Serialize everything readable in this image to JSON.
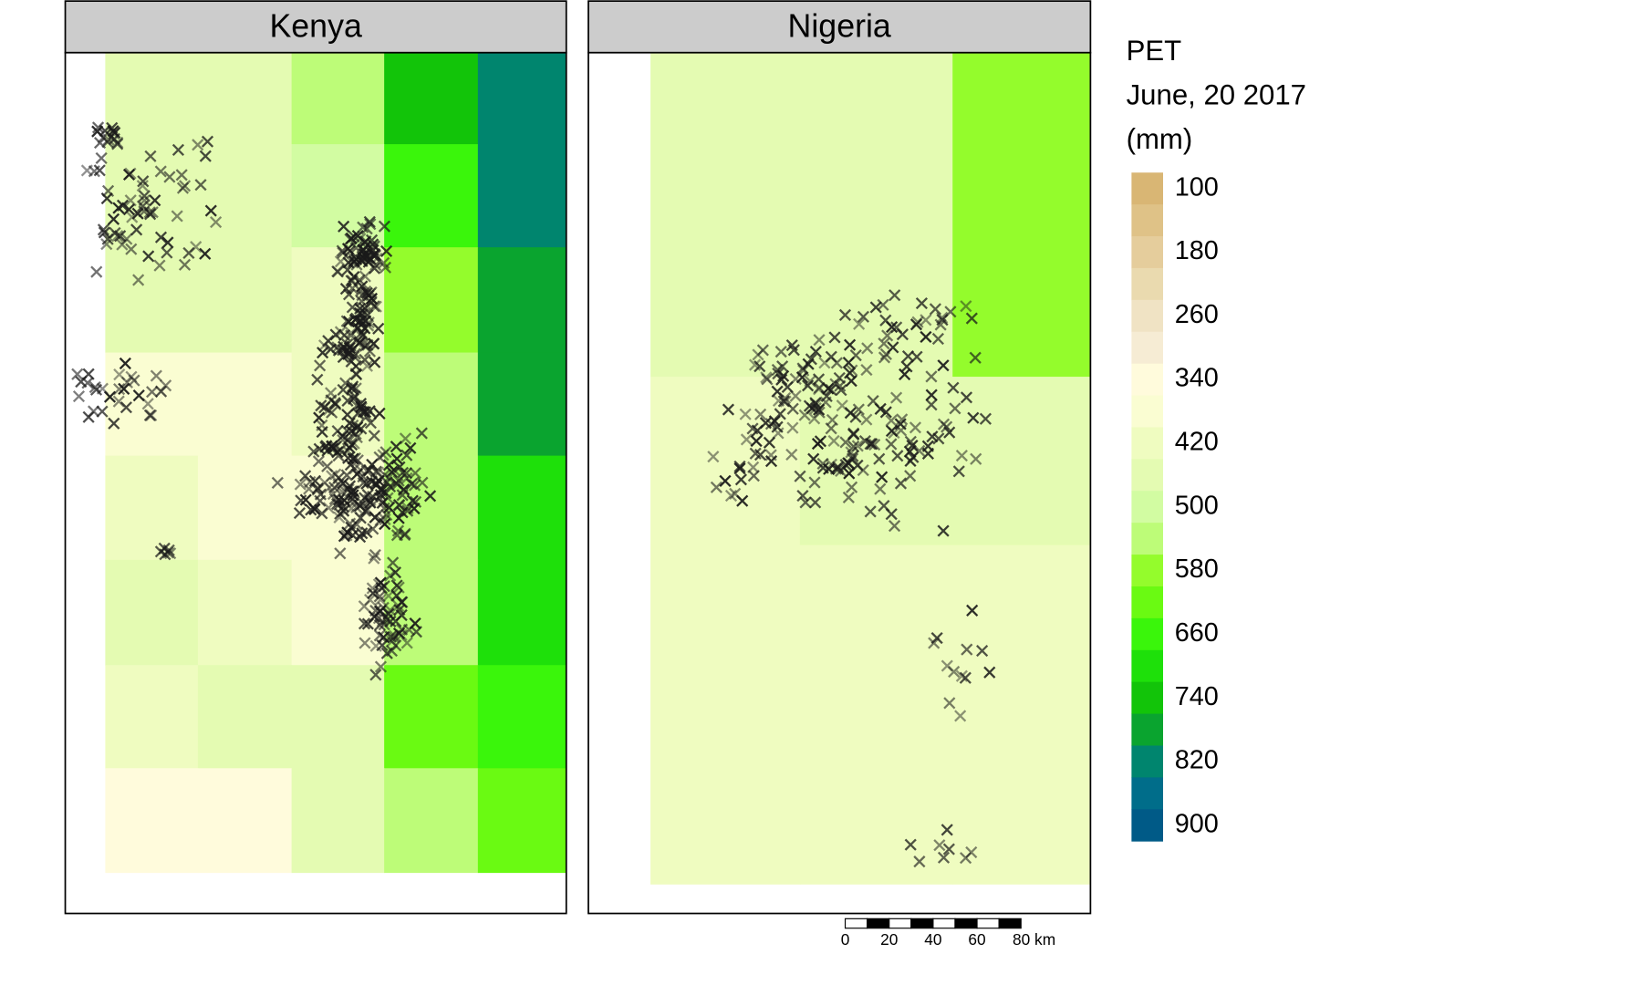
{
  "panels": [
    {
      "title": "Kenya",
      "cells": [
        [
          460,
          460,
          540,
          740,
          820
        ],
        [
          460,
          460,
          500,
          660,
          820
        ],
        [
          460,
          460,
          420,
          580,
          780
        ],
        [
          380,
          380,
          420,
          540,
          780
        ],
        [
          420,
          380,
          380,
          540,
          700
        ],
        [
          460,
          420,
          380,
          540,
          700
        ],
        [
          420,
          460,
          460,
          620,
          660
        ],
        [
          340,
          340,
          460,
          540,
          620
        ]
      ]
    },
    {
      "title": "Nigeria",
      "cells": [
        [
          460,
          460,
          580
        ],
        [
          420,
          460,
          460
        ],
        [
          420,
          420,
          420
        ]
      ]
    }
  ],
  "legend": {
    "title": "PET",
    "subtitle": "June, 20 2017",
    "unit": "(mm)",
    "breaks": [
      100,
      140,
      180,
      220,
      260,
      300,
      340,
      380,
      420,
      460,
      500,
      540,
      580,
      620,
      660,
      700,
      740,
      780,
      820,
      860,
      900
    ],
    "colors": [
      "#d9b674",
      "#dfc287",
      "#e5cd9c",
      "#eadaaf",
      "#f0e3c4",
      "#f6ecd4",
      "#fffbdc",
      "#fafdd2",
      "#effcc0",
      "#e4fbb2",
      "#d2fca2",
      "#bdfc78",
      "#94fc2c",
      "#6afa12",
      "#3af60b",
      "#1ee00a",
      "#12c409",
      "#0aa42f",
      "#00856e",
      "#006d8a",
      "#005a87"
    ],
    "ticks": [
      100,
      180,
      260,
      340,
      420,
      500,
      580,
      660,
      740,
      820,
      900
    ]
  },
  "scale_bar": {
    "labels": [
      "0",
      "20",
      "40",
      "60",
      "80 km"
    ]
  }
}
